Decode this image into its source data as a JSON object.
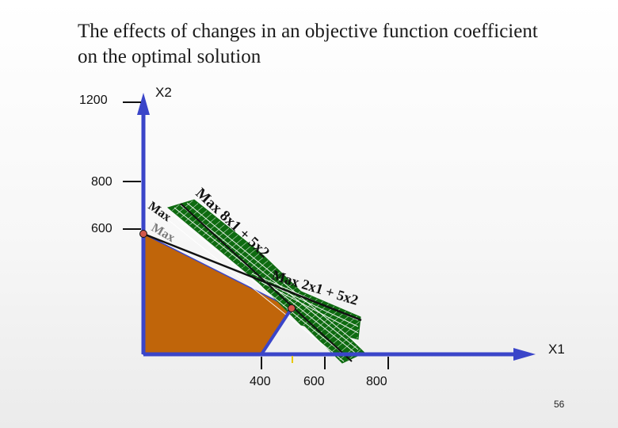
{
  "slide": {
    "title_line1": "The effects of changes in an objective function coefficient",
    "title_line2": "on the optimal solution",
    "page_number": "56"
  },
  "axes": {
    "x_label": "X1",
    "y_label": "X2",
    "x_ticks": [
      "400",
      "600",
      "800"
    ],
    "y_ticks": [
      "1200",
      "800",
      "600"
    ]
  },
  "objective_labels": {
    "steep": "Max 8x1 + 5x2",
    "shallow": "Max 2x1 + 5x2",
    "partial_1": "Max",
    "partial_2": "Max"
  },
  "colors": {
    "axis": "#3a45c9",
    "feasible_region": "#c0650a",
    "fan_fill": "#0e6b10",
    "objective_line": "#111111",
    "vertex_marker": "#d2584a",
    "tick": "#111111"
  }
}
